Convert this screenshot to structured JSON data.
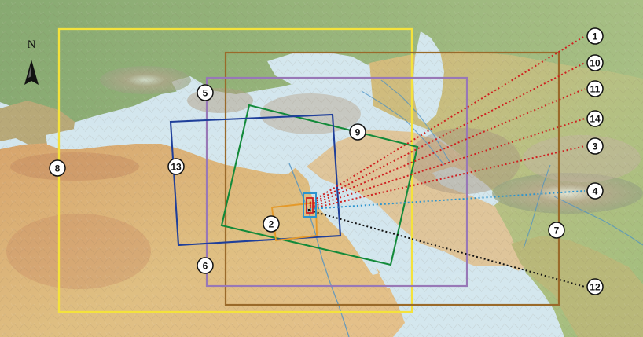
{
  "north_arrow": {
    "label": "N",
    "icon": "north-arrow-icon"
  },
  "colors": {
    "sea": "#d4e7ee",
    "land_green": "#8fb07a",
    "land_desert": "#d8b17a",
    "land_red": "#c98a62",
    "mountain": "#b39f86",
    "yellow_box": "#f4e23c",
    "brown_box": "#9a6a2a",
    "purple_box": "#9878b7",
    "green_box": "#138a3a",
    "blue_box": "#1f3f9a",
    "orange_box": "#e59a2a",
    "red_dotted": "#cf2020",
    "blue_dotted": "#2b94cf",
    "black_dotted": "#111111"
  },
  "markers": [
    {
      "id": "m1",
      "label": "1"
    },
    {
      "id": "m10",
      "label": "10"
    },
    {
      "id": "m11",
      "label": "11"
    },
    {
      "id": "m14",
      "label": "14"
    },
    {
      "id": "m3",
      "label": "3"
    },
    {
      "id": "m4",
      "label": "4"
    },
    {
      "id": "m12",
      "label": "12"
    },
    {
      "id": "m7",
      "label": "7"
    },
    {
      "id": "m9",
      "label": "9"
    },
    {
      "id": "m5",
      "label": "5"
    },
    {
      "id": "m8",
      "label": "8"
    },
    {
      "id": "m13",
      "label": "13"
    },
    {
      "id": "m2",
      "label": "2"
    },
    {
      "id": "m6",
      "label": "6"
    }
  ]
}
